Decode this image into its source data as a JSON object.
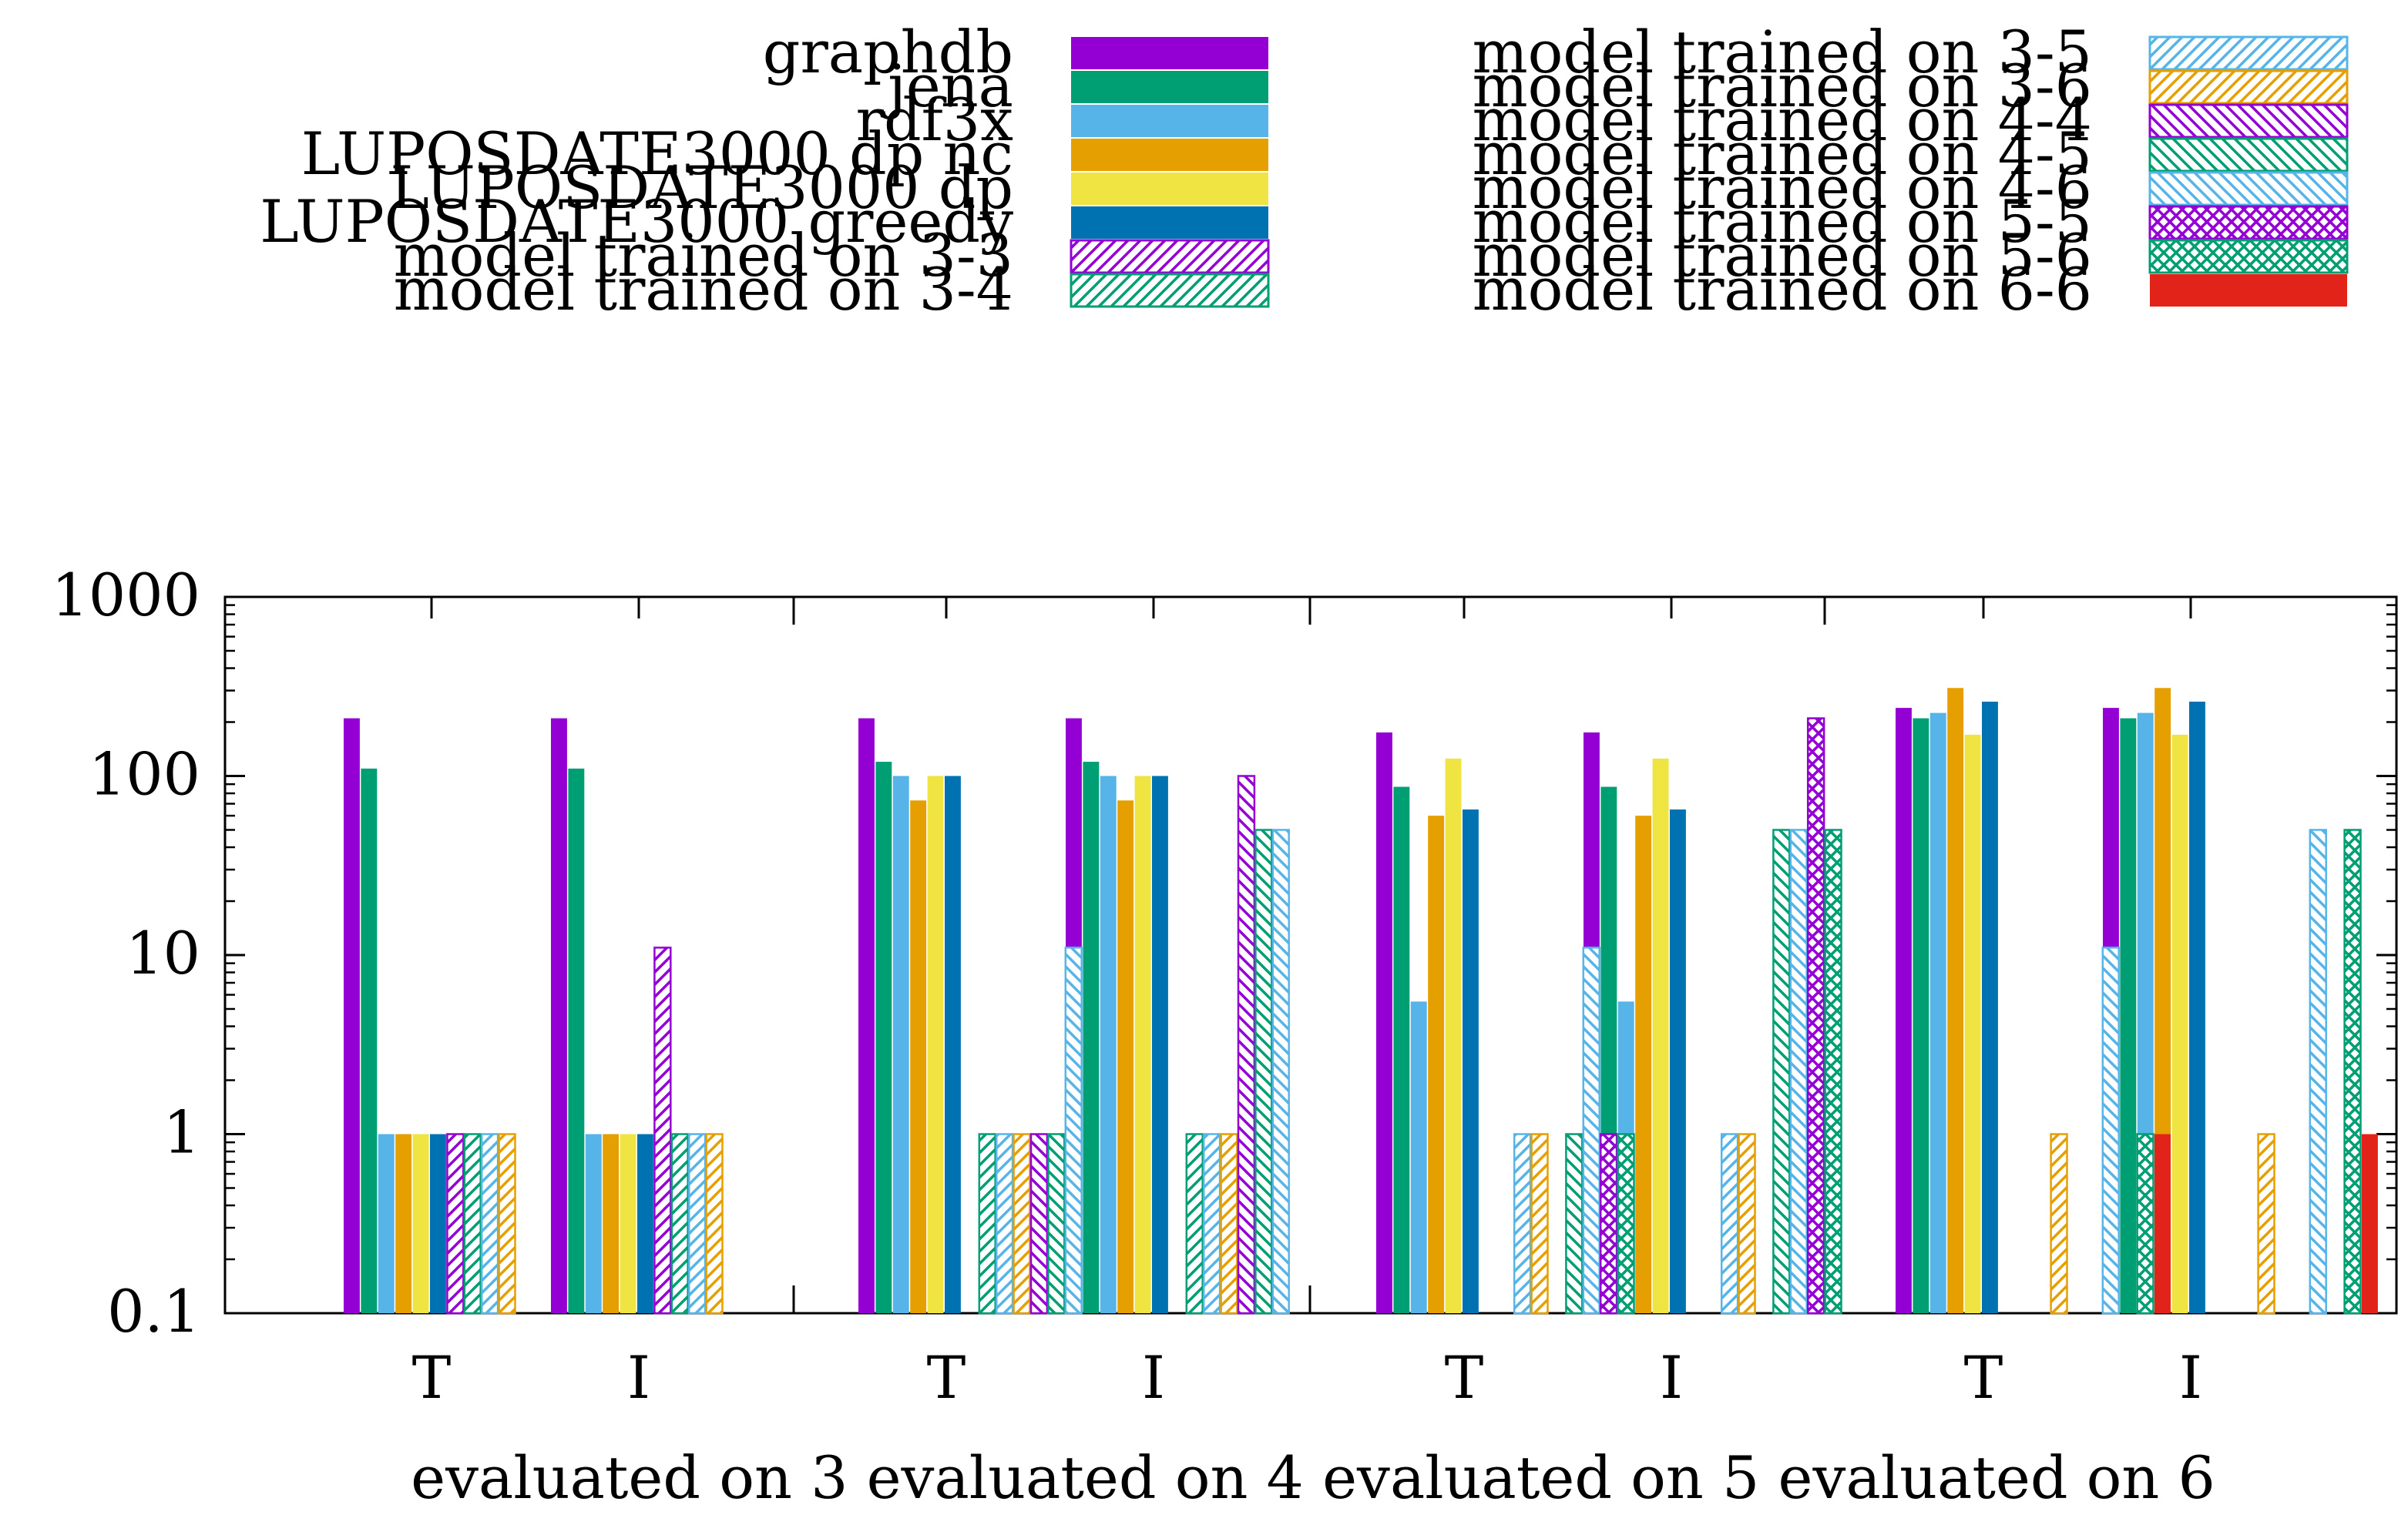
{
  "chart_data": {
    "type": "bar",
    "scale": "log",
    "ylim": [
      0.1,
      1000
    ],
    "y_ticks": [
      "1000",
      "100",
      "10",
      "1",
      "0.1"
    ],
    "y_tick_values": [
      1000,
      100,
      10,
      1,
      0.1
    ],
    "xlabel": "evaluated on 3 evaluated on 4 evaluated on 5 evaluated on 6",
    "ylabel": "",
    "title": "",
    "x_tick_labels": [
      "T",
      "I",
      "T",
      "I",
      "T",
      "I",
      "T",
      "I"
    ],
    "groups": [
      {
        "label": "evaluated on 3 - T"
      },
      {
        "label": "evaluated on 3 - I"
      },
      {
        "label": "evaluated on 4 - T"
      },
      {
        "label": "evaluated on 4 - I"
      },
      {
        "label": "evaluated on 5 - T"
      },
      {
        "label": "evaluated on 5 - I"
      },
      {
        "label": "evaluated on 6 - T"
      },
      {
        "label": "evaluated on 6 - I"
      }
    ],
    "series": [
      {
        "name": "graphdb",
        "color": "#9400d3",
        "pattern": "solid",
        "values": [
          210,
          210,
          210,
          210,
          175,
          175,
          240,
          240
        ]
      },
      {
        "name": "jena",
        "color": "#009e73",
        "pattern": "solid",
        "values": [
          110,
          110,
          120,
          120,
          87,
          87,
          210,
          210
        ]
      },
      {
        "name": "rdf3x",
        "color": "#56b4e9",
        "pattern": "solid",
        "values": [
          1,
          1,
          100,
          100,
          5.5,
          5.5,
          225,
          225
        ]
      },
      {
        "name": "LUPOSDATE3000 dp nc",
        "color": "#e69f00",
        "pattern": "solid",
        "values": [
          1,
          1,
          73,
          73,
          60,
          60,
          310,
          310
        ]
      },
      {
        "name": "LUPOSDATE3000 dp",
        "color": "#f0e442",
        "pattern": "solid",
        "values": [
          1,
          1,
          100,
          100,
          125,
          125,
          170,
          170
        ]
      },
      {
        "name": "LUPOSDATE3000 greedy",
        "color": "#0072b2",
        "pattern": "solid",
        "values": [
          1,
          1,
          100,
          100,
          65,
          65,
          260,
          260
        ]
      },
      {
        "name": "model trained on 3-3",
        "color": "#9400d3",
        "pattern": "hatch-fwd",
        "values": [
          1,
          11,
          null,
          null,
          null,
          null,
          null,
          null
        ]
      },
      {
        "name": "model trained on 3-4",
        "color": "#009e73",
        "pattern": "hatch-fwd",
        "values": [
          1,
          1,
          1,
          1,
          null,
          null,
          null,
          null
        ]
      },
      {
        "name": "model trained on 3-5",
        "color": "#56b4e9",
        "pattern": "hatch-fwd",
        "values": [
          1,
          1,
          1,
          1,
          1,
          1,
          null,
          null
        ]
      },
      {
        "name": "model trained on 3-6",
        "color": "#e69f00",
        "pattern": "hatch-fwd",
        "values": [
          1,
          1,
          1,
          1,
          1,
          1,
          1,
          1
        ]
      },
      {
        "name": "model trained on 4-4",
        "color": "#9400d3",
        "pattern": "hatch-back",
        "values": [
          null,
          null,
          1,
          100,
          null,
          null,
          null,
          null
        ]
      },
      {
        "name": "model trained on 4-5",
        "color": "#009e73",
        "pattern": "hatch-back",
        "values": [
          null,
          null,
          1,
          50,
          1,
          50,
          null,
          null
        ]
      },
      {
        "name": "model trained on 4-6",
        "color": "#56b4e9",
        "pattern": "hatch-back",
        "values": [
          null,
          null,
          11,
          50,
          11,
          50,
          11,
          50
        ]
      },
      {
        "name": "model trained on 5-5",
        "color": "#9400d3",
        "pattern": "crosshatch",
        "values": [
          null,
          null,
          null,
          null,
          1,
          210,
          null,
          null
        ]
      },
      {
        "name": "model trained on 5-6",
        "color": "#009e73",
        "pattern": "crosshatch",
        "values": [
          null,
          null,
          null,
          null,
          1,
          50,
          1,
          50
        ]
      },
      {
        "name": "model trained on 6-6",
        "color": "#e2231a",
        "pattern": "solid",
        "values": [
          null,
          null,
          null,
          null,
          null,
          null,
          1,
          1
        ]
      }
    ]
  }
}
